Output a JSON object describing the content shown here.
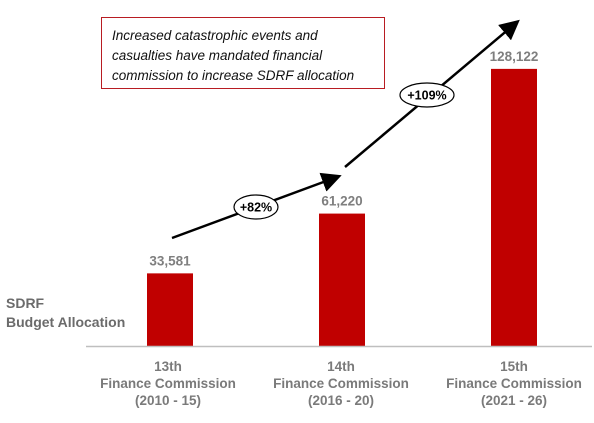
{
  "callout": {
    "line1": "Increased catastrophic events and",
    "line2": "casualties have mandated financial",
    "line3": "commission to increase SDRF allocation"
  },
  "series_label": {
    "line1": "SDRF",
    "line2": "Budget Allocation"
  },
  "colors": {
    "bar": "#c00000",
    "value_label": "#7f7f7f",
    "axis": "#bfbfbf",
    "arrow": "#000000",
    "callout_border": "#b81c22"
  },
  "chart_data": {
    "type": "bar",
    "categories": [
      {
        "line1": "13th",
        "line2": "Finance Commission",
        "line3": "(2010 - 15)"
      },
      {
        "line1": "14th",
        "line2": "Finance Commission",
        "line3": "(2016 - 20)"
      },
      {
        "line1": "15th",
        "line2": "Finance Commission",
        "line3": "(2021 - 26)"
      }
    ],
    "values": [
      33581,
      61220,
      128122
    ],
    "value_labels": [
      "33,581",
      "61,220",
      "128,122"
    ],
    "growth_labels": [
      "+82%",
      "+109%"
    ],
    "ylim": [
      0,
      135000
    ],
    "grid": false,
    "legend": "none"
  }
}
